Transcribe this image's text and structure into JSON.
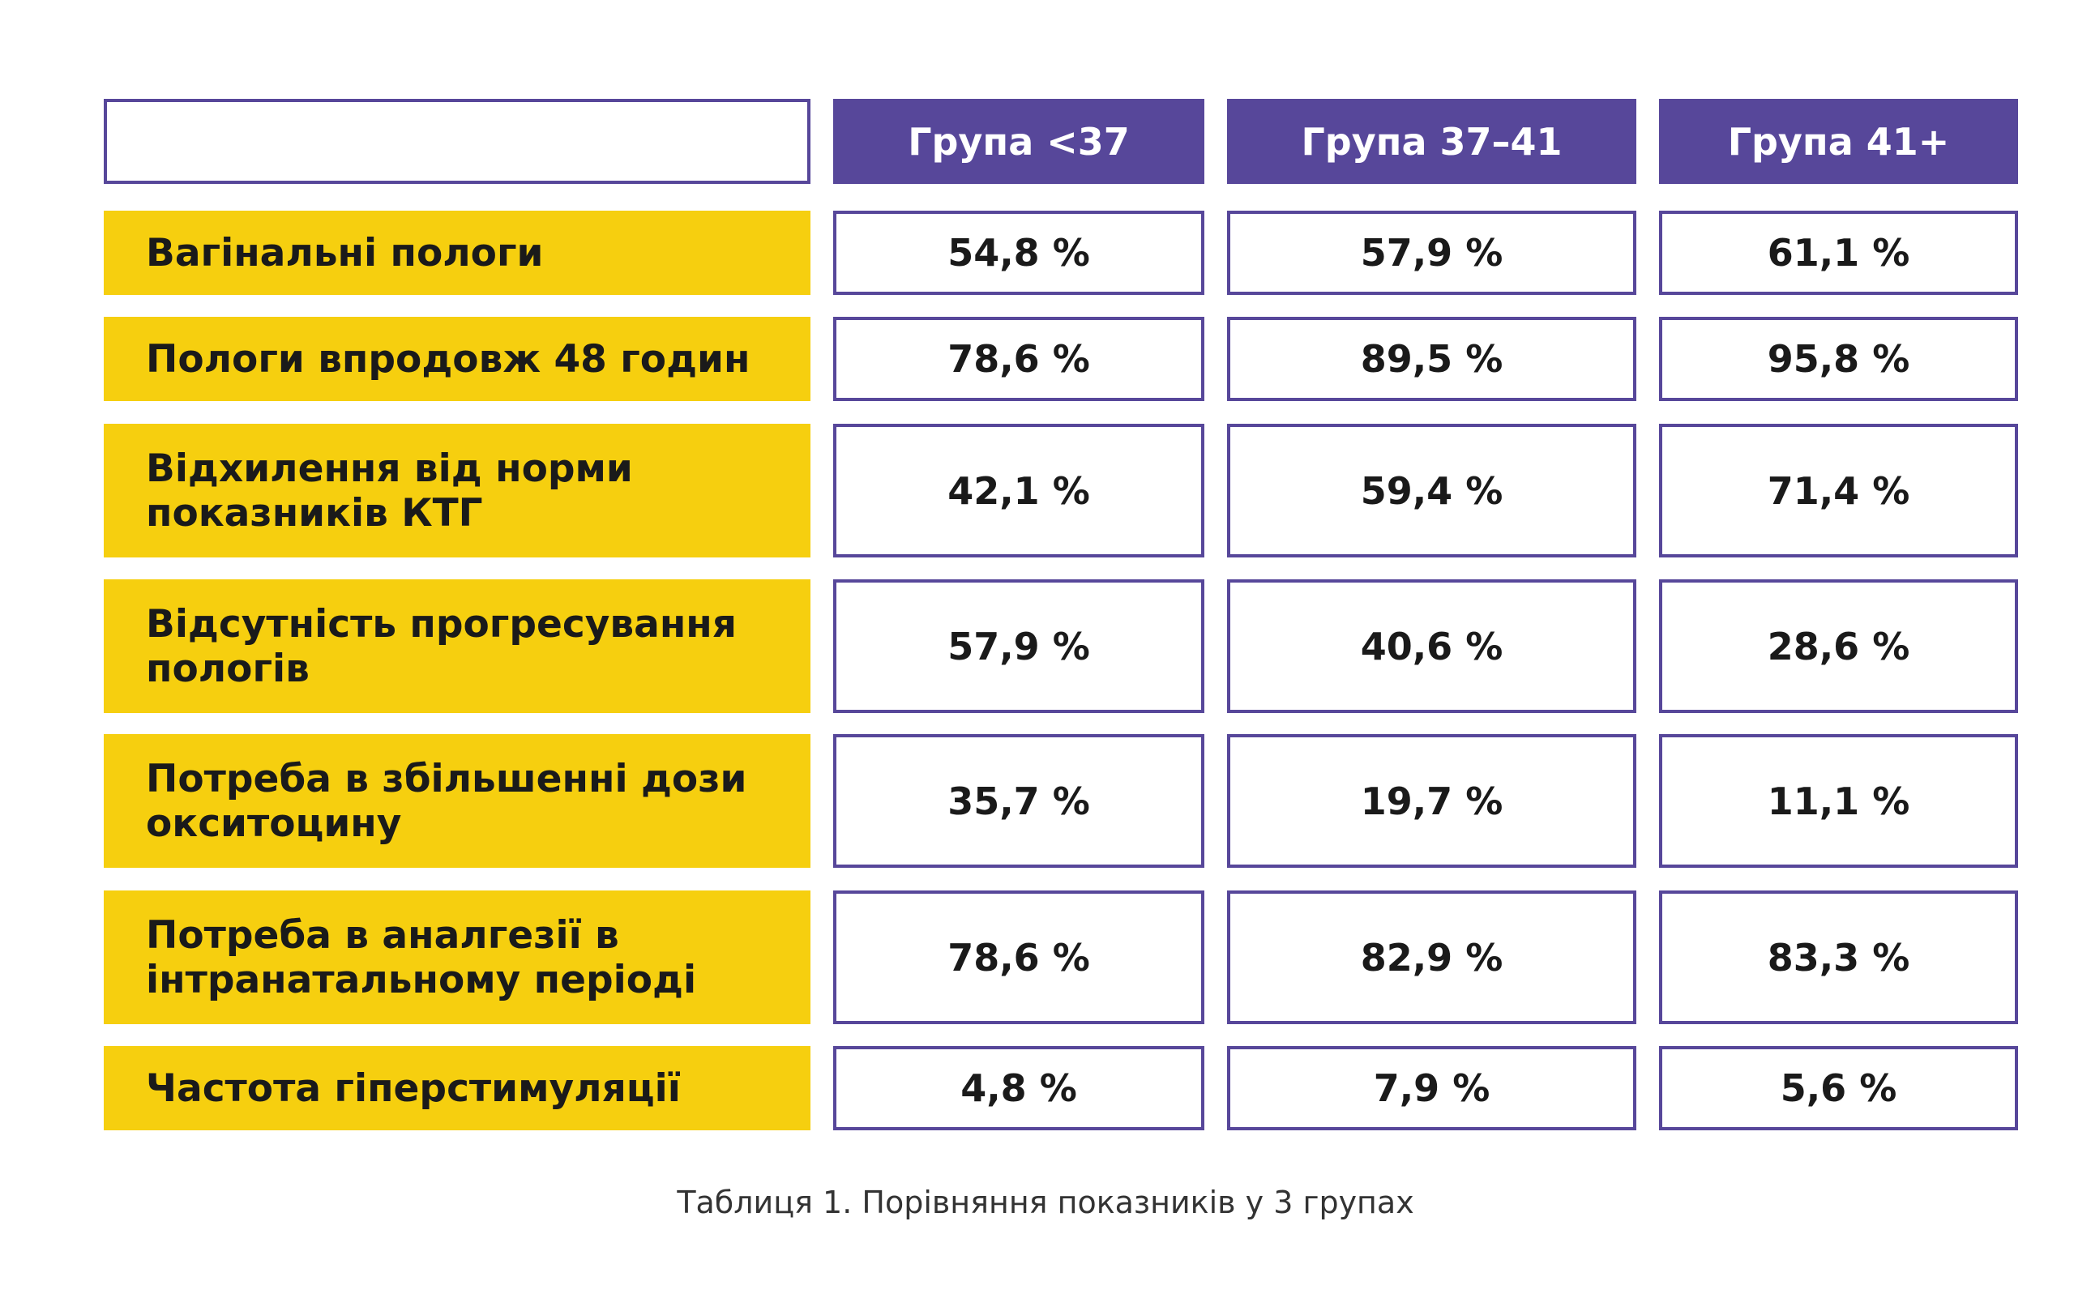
{
  "chart_data": {
    "type": "table",
    "columns": [
      "Група <37",
      "Група 37–41",
      "Група 41+"
    ],
    "rows": [
      {
        "label": "Вагінальні пологи",
        "values": [
          "54,8 %",
          "57,9 %",
          "61,1 %"
        ]
      },
      {
        "label": "Пологи впродовж 48 годин",
        "values": [
          "78,6 %",
          "89,5 %",
          "95,8 %"
        ]
      },
      {
        "label": "Відхилення від норми показників КТГ",
        "values": [
          "42,1 %",
          "59,4 %",
          "71,4 %"
        ]
      },
      {
        "label": "Відсутність прогресування пологів",
        "values": [
          "57,9 %",
          "40,6 %",
          "28,6 %"
        ]
      },
      {
        "label": "Потреба в збільшенні дози окситоцину",
        "values": [
          "35,7 %",
          "19,7 %",
          "11,1 %"
        ]
      },
      {
        "label": "Потреба в аналгезії в інтранатальному періоді",
        "values": [
          "78,6 %",
          "82,9 %",
          "83,3 %"
        ]
      },
      {
        "label": "Частота гіперстимуляції",
        "values": [
          "4,8 %",
          "7,9 %",
          "5,6 %"
        ]
      }
    ],
    "caption": "Таблиця 1. Порівняння показників у 3 групах"
  },
  "colors": {
    "header_bg": "#57479a",
    "label_bg": "#f6cf0f",
    "border": "#57479a",
    "text": "#1a1a1a"
  }
}
